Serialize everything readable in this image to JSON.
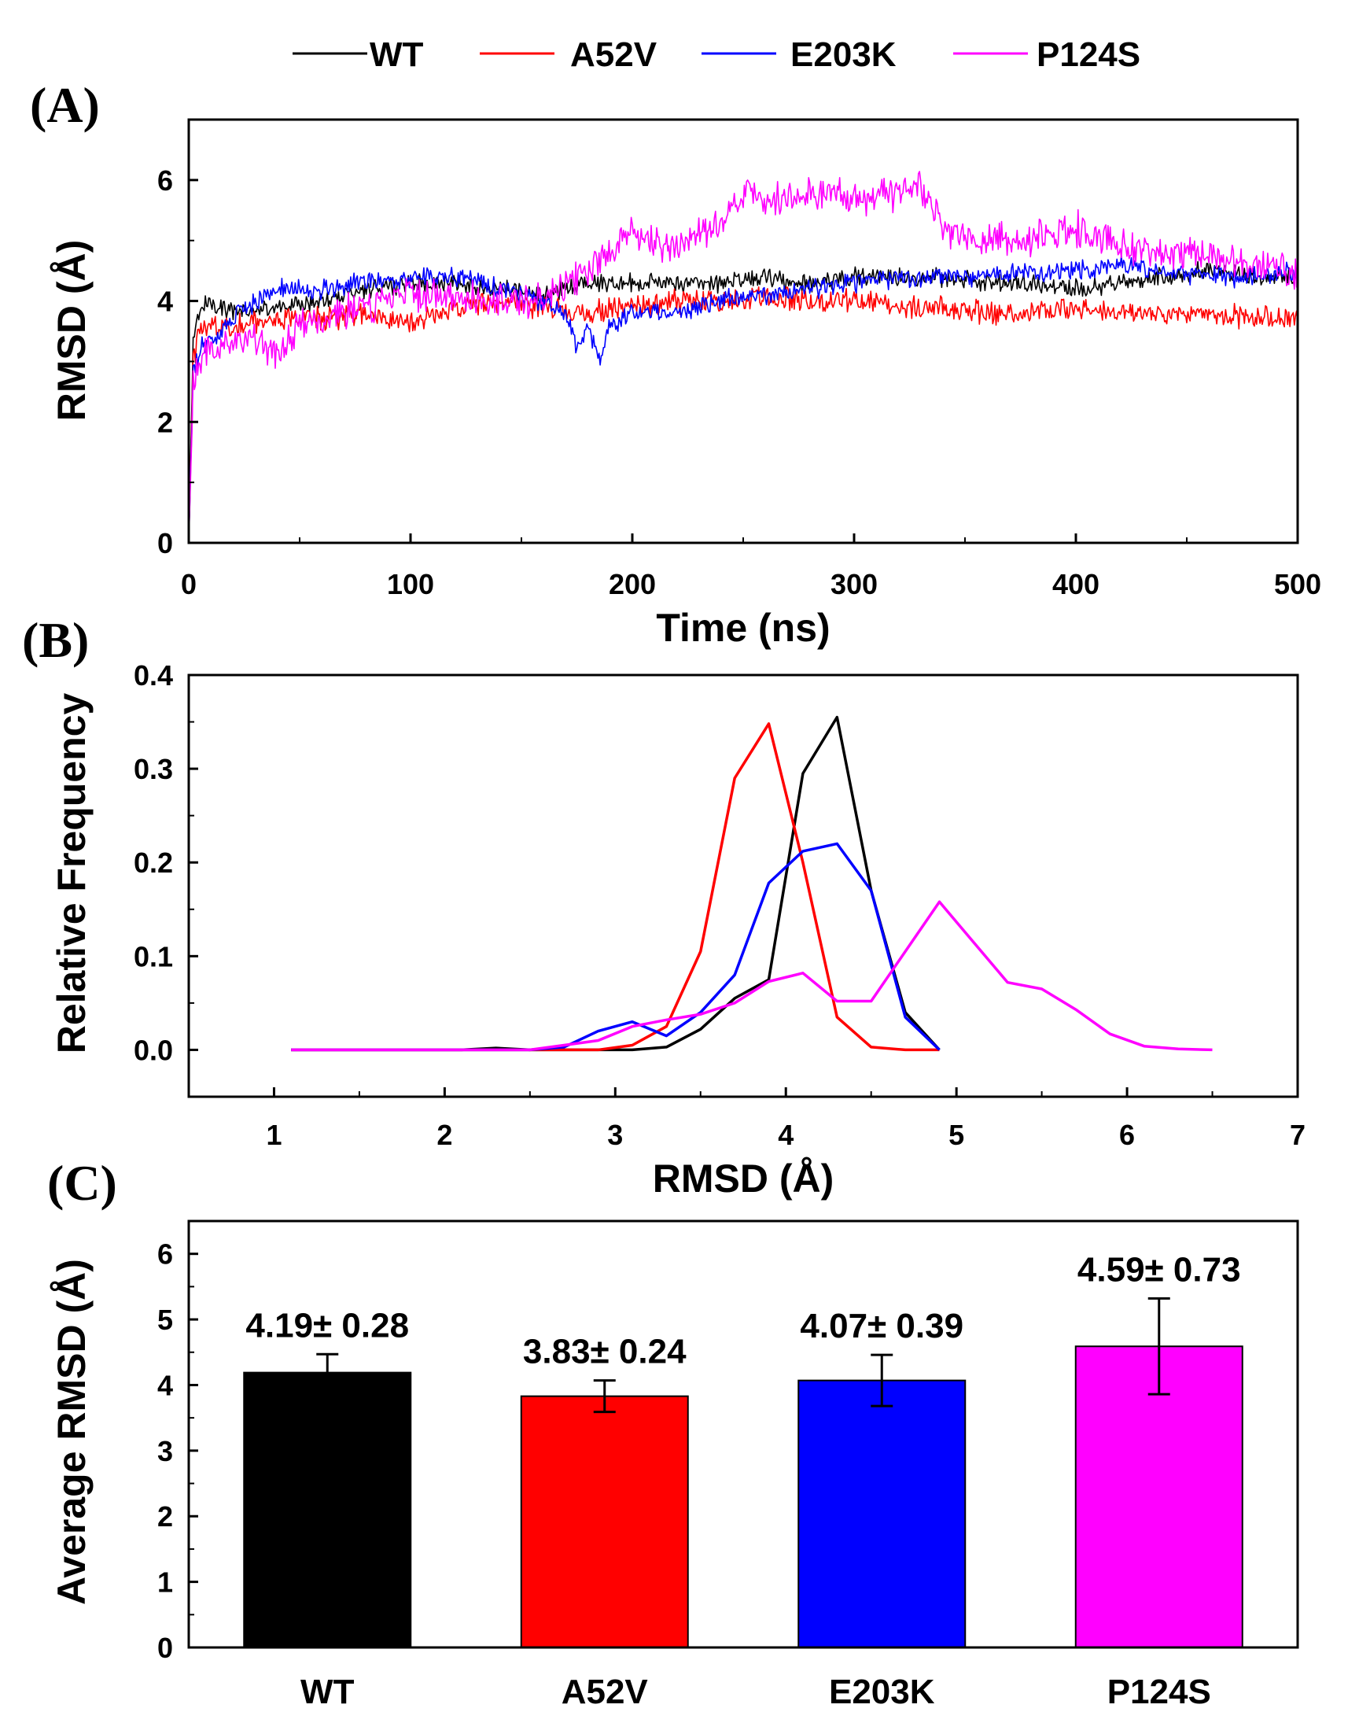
{
  "legend": [
    {
      "name": "WT",
      "color": "#000000"
    },
    {
      "name": "A52V",
      "color": "#ff0000"
    },
    {
      "name": "E203K",
      "color": "#0000ff"
    },
    {
      "name": "P124S",
      "color": "#ff00ff"
    }
  ],
  "chart_data": [
    {
      "panel": "(A)",
      "type": "line",
      "xlabel": "Time (ns)",
      "ylabel": "RMSD (Å)",
      "xlim": [
        0,
        500
      ],
      "ylim": [
        0,
        7
      ],
      "xticks": [
        0,
        100,
        200,
        300,
        400,
        500
      ],
      "yticks": [
        0,
        2,
        4,
        6
      ],
      "series": [
        {
          "name": "WT",
          "color": "#000000",
          "noise": 0.12,
          "x": [
            0,
            2,
            5,
            10,
            20,
            40,
            60,
            80,
            100,
            120,
            140,
            160,
            180,
            200,
            220,
            240,
            260,
            280,
            300,
            320,
            340,
            360,
            380,
            400,
            420,
            440,
            460,
            480,
            500
          ],
          "y": [
            0,
            3.3,
            3.9,
            4.0,
            3.8,
            3.9,
            4.0,
            4.2,
            4.3,
            4.3,
            4.2,
            4.1,
            4.3,
            4.3,
            4.3,
            4.3,
            4.4,
            4.3,
            4.4,
            4.4,
            4.4,
            4.3,
            4.3,
            4.2,
            4.3,
            4.4,
            4.5,
            4.4,
            4.4
          ]
        },
        {
          "name": "A52V",
          "color": "#ff0000",
          "noise": 0.15,
          "x": [
            0,
            2,
            5,
            10,
            20,
            40,
            60,
            80,
            100,
            120,
            140,
            160,
            180,
            200,
            220,
            240,
            260,
            280,
            300,
            320,
            340,
            360,
            380,
            400,
            420,
            440,
            460,
            480,
            500
          ],
          "y": [
            0,
            3.0,
            3.5,
            3.6,
            3.6,
            3.7,
            3.7,
            3.8,
            3.6,
            3.9,
            4.0,
            3.9,
            3.8,
            3.9,
            4.0,
            4.0,
            4.1,
            4.0,
            4.0,
            3.9,
            3.9,
            3.8,
            3.8,
            3.9,
            3.8,
            3.8,
            3.8,
            3.7,
            3.7
          ]
        },
        {
          "name": "E203K",
          "color": "#0000ff",
          "noise": 0.13,
          "x": [
            0,
            2,
            5,
            10,
            20,
            40,
            60,
            80,
            100,
            120,
            140,
            160,
            170,
            175,
            180,
            185,
            190,
            200,
            220,
            240,
            260,
            280,
            300,
            320,
            340,
            360,
            380,
            400,
            420,
            440,
            460,
            480,
            500
          ],
          "y": [
            0,
            2.8,
            3.2,
            3.3,
            3.7,
            4.2,
            4.2,
            4.3,
            4.4,
            4.4,
            4.2,
            4.0,
            3.8,
            3.2,
            3.6,
            3.0,
            3.6,
            3.8,
            3.8,
            4.0,
            4.1,
            4.2,
            4.3,
            4.4,
            4.4,
            4.4,
            4.5,
            4.5,
            4.6,
            4.5,
            4.4,
            4.4,
            4.5
          ]
        },
        {
          "name": "P124S",
          "color": "#ff00ff",
          "noise": 0.22,
          "x": [
            0,
            2,
            5,
            10,
            20,
            30,
            40,
            50,
            60,
            80,
            100,
            120,
            140,
            160,
            180,
            200,
            210,
            220,
            240,
            250,
            260,
            280,
            300,
            320,
            330,
            340,
            360,
            380,
            400,
            420,
            440,
            460,
            480,
            500
          ],
          "y": [
            0,
            2.6,
            3.0,
            3.2,
            3.3,
            3.4,
            3.1,
            3.6,
            3.7,
            3.9,
            4.1,
            4.1,
            4.0,
            4.0,
            4.5,
            5.1,
            5.0,
            4.9,
            5.3,
            5.8,
            5.6,
            5.8,
            5.7,
            5.8,
            5.9,
            5.2,
            5.0,
            5.0,
            5.2,
            4.9,
            4.8,
            4.8,
            4.6,
            4.5
          ]
        }
      ]
    },
    {
      "panel": "(B)",
      "type": "line",
      "xlabel": "RMSD (Å)",
      "ylabel": "Relative Frequency",
      "xlim": [
        0.5,
        7
      ],
      "ylim": [
        -0.05,
        0.4
      ],
      "xticks": [
        1,
        2,
        3,
        4,
        5,
        6,
        7
      ],
      "yticks": [
        "0.0",
        "0.1",
        "0.2",
        "0.3",
        "0.4"
      ],
      "series": [
        {
          "name": "WT",
          "color": "#000000",
          "x": [
            1.1,
            1.3,
            1.5,
            1.7,
            1.9,
            2.1,
            2.3,
            2.5,
            2.7,
            2.9,
            3.1,
            3.3,
            3.5,
            3.7,
            3.9,
            4.1,
            4.3,
            4.5,
            4.7,
            4.9
          ],
          "y": [
            0,
            0,
            0,
            0,
            0,
            0,
            0.002,
            0,
            0,
            0,
            0,
            0.003,
            0.022,
            0.055,
            0.075,
            0.295,
            0.355,
            0.17,
            0.04,
            0
          ]
        },
        {
          "name": "A52V",
          "color": "#ff0000",
          "x": [
            1.1,
            1.3,
            1.5,
            1.7,
            1.9,
            2.1,
            2.3,
            2.5,
            2.7,
            2.9,
            3.1,
            3.3,
            3.5,
            3.7,
            3.9,
            4.1,
            4.3,
            4.5,
            4.7,
            4.9
          ],
          "y": [
            0,
            0,
            0,
            0,
            0,
            0,
            0,
            0,
            0,
            0,
            0.005,
            0.025,
            0.105,
            0.29,
            0.348,
            0.2,
            0.035,
            0.003,
            0,
            0
          ]
        },
        {
          "name": "E203K",
          "color": "#0000ff",
          "x": [
            1.1,
            1.3,
            1.5,
            1.7,
            1.9,
            2.1,
            2.3,
            2.5,
            2.7,
            2.9,
            3.1,
            3.3,
            3.5,
            3.7,
            3.9,
            4.1,
            4.3,
            4.5,
            4.7,
            4.9
          ],
          "y": [
            0,
            0,
            0,
            0,
            0,
            0,
            0,
            0,
            0.003,
            0.02,
            0.03,
            0.015,
            0.04,
            0.08,
            0.178,
            0.212,
            0.22,
            0.17,
            0.035,
            0
          ]
        },
        {
          "name": "P124S",
          "color": "#ff00ff",
          "x": [
            1.1,
            1.3,
            1.5,
            1.7,
            1.9,
            2.1,
            2.3,
            2.5,
            2.7,
            2.9,
            3.1,
            3.3,
            3.5,
            3.7,
            3.9,
            4.1,
            4.3,
            4.5,
            4.7,
            4.9,
            5.1,
            5.3,
            5.5,
            5.7,
            5.9,
            6.1,
            6.3,
            6.5
          ],
          "y": [
            0,
            0,
            0,
            0,
            0,
            0,
            0,
            0,
            0.005,
            0.01,
            0.025,
            0.032,
            0.038,
            0.05,
            0.073,
            0.082,
            0.052,
            0.052,
            0.105,
            0.158,
            0.115,
            0.072,
            0.065,
            0.043,
            0.017,
            0.004,
            0.001,
            0
          ]
        }
      ]
    },
    {
      "panel": "(C)",
      "type": "bar",
      "ylabel": "Average RMSD (Å)",
      "ylim": [
        0,
        6.5
      ],
      "yticks": [
        0,
        1,
        2,
        3,
        4,
        5,
        6
      ],
      "categories": [
        "WT",
        "A52V",
        "E203K",
        "P124S"
      ],
      "values": [
        4.19,
        3.83,
        4.07,
        4.59
      ],
      "errors": [
        0.28,
        0.24,
        0.39,
        0.73
      ],
      "colors": [
        "#000000",
        "#ff0000",
        "#0000ff",
        "#ff00ff"
      ],
      "labels": [
        "4.19± 0.28",
        "3.83± 0.24",
        "4.07± 0.39",
        "4.59± 0.73"
      ]
    }
  ]
}
